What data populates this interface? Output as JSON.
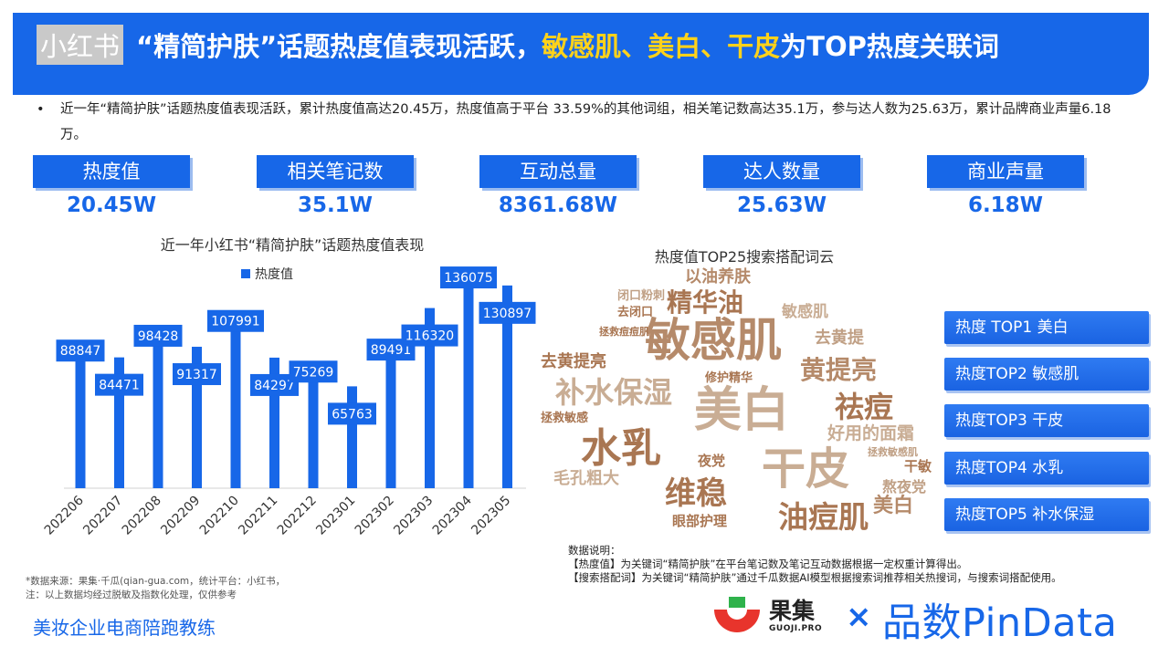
{
  "header": {
    "tag": "小红书",
    "title_parts": [
      "“精简护肤”",
      "话题热度值表现活跃，",
      "敏感肌、美白、干皮",
      "为TOP热度关联词"
    ]
  },
  "summary": {
    "bullet": "•",
    "text": "近一年“精简护肤”话题热度值表现活跃，累计热度值高达20.45万，热度值高于平台 33.59%的其他词组，相关笔记数高达35.1万，参与达人数为25.63万，累计品牌商业声量6.18万。"
  },
  "kpis": [
    {
      "label": "热度值",
      "value": "20.45W"
    },
    {
      "label": "相关笔记数",
      "value": "35.1W"
    },
    {
      "label": "互动总量",
      "value": "8361.68W"
    },
    {
      "label": "达人数量",
      "value": "25.63W"
    },
    {
      "label": "商业声量",
      "value": "6.18W"
    }
  ],
  "chart_data": {
    "type": "bar",
    "title": "近一年小红书“精简护肤”话题热度值表现",
    "categories": [
      "202206",
      "202207",
      "202208",
      "202209",
      "202210",
      "202211",
      "202212",
      "202301",
      "202302",
      "202303",
      "202304",
      "202305"
    ],
    "series": [
      {
        "name": "热度值",
        "values": [
          88847,
          84471,
          98428,
          91317,
          107991,
          84297,
          75269,
          65763,
          89491,
          116320,
          136075,
          130897
        ]
      }
    ],
    "ylim": [
      0,
      140000
    ],
    "label_position": "alternating",
    "legend": "top-center",
    "color": "#1767e8",
    "grid": false
  },
  "word_cloud": {
    "title": "热度值TOP25搜索搭配词云",
    "words": [
      {
        "text": "以油养肤",
        "color": "#b58a6a"
      },
      {
        "text": "精华油",
        "color": "#a97652"
      },
      {
        "text": "敏感肌",
        "color": "#b58a6a"
      },
      {
        "text": "闭口粉刺",
        "color": "#c0a085"
      },
      {
        "text": "去闭口",
        "color": "#a97652"
      },
      {
        "text": "拯救痘痘肌",
        "color": "#a97652"
      },
      {
        "text": "敏感肌",
        "color": "#c9ad94"
      },
      {
        "text": "去黄提",
        "color": "#c0a085"
      },
      {
        "text": "去黄提亮",
        "color": "#a97652"
      },
      {
        "text": "修护精华",
        "color": "#a97652"
      },
      {
        "text": "黄提亮",
        "color": "#b58a6a"
      },
      {
        "text": "补水保湿",
        "color": "#c9ad94"
      },
      {
        "text": "美白",
        "color": "#c9ad94"
      },
      {
        "text": "祛痘",
        "color": "#a97652"
      },
      {
        "text": "拯救敏感",
        "color": "#a97652"
      },
      {
        "text": "好用的面霜",
        "color": "#c9ad94"
      },
      {
        "text": "水乳",
        "color": "#a97652"
      },
      {
        "text": "拯救敏感肌",
        "color": "#c0a085"
      },
      {
        "text": "夜党",
        "color": "#a97652"
      },
      {
        "text": "干皮",
        "color": "#c9ad94"
      },
      {
        "text": "干敏",
        "color": "#a97652"
      },
      {
        "text": "毛孔粗大",
        "color": "#c9ad94"
      },
      {
        "text": "维稳",
        "color": "#a97652"
      },
      {
        "text": "熬夜党",
        "color": "#c0a085"
      },
      {
        "text": "眼部护理",
        "color": "#a97652"
      },
      {
        "text": "油痘肌",
        "color": "#a97652"
      },
      {
        "text": "美白",
        "color": "#b58a6a"
      }
    ]
  },
  "top_list": [
    "热度 TOP1   美白",
    "热度TOP2   敏感肌",
    "热度TOP3   干皮",
    "热度TOP4   水乳",
    "热度TOP5   补水保湿"
  ],
  "notes": {
    "heading": "数据说明：",
    "line1": "【热度值】为关键词“精简护肤”在平台笔记数及笔记互动数据根据一定权重计算得出。",
    "line2": "【搜索搭配词】为关键词“精简护肤”通过千瓜数据AI模型根据搜索词推荐相关热搜词，与搜索词搭配使用。"
  },
  "source": {
    "line1": "*数据来源：果集·千瓜(qian-gua.com，统计平台：小红书，",
    "line2": "注：以上数据均经过脱敏及指数化处理，仅供参考"
  },
  "footer": {
    "brand": "美妆企业电商陪跑教练",
    "logo_guoji_cn": "果集",
    "logo_guoji_en": "GUOJI.PRO",
    "logo_x": "×",
    "logo_pindata": "品数PinData"
  }
}
